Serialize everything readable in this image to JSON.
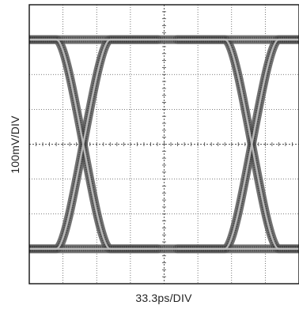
{
  "chart_data": {
    "type": "eye-diagram",
    "xlabel": "33.3ps/DIV",
    "ylabel": "100mV/DIV",
    "x_divisions": 8,
    "y_divisions": 8,
    "grid": true,
    "eye": {
      "high_level_div": 7.0,
      "low_level_div": 1.0,
      "crossing_level_div": 4.0,
      "crossings_x_div": [
        1.6,
        6.6
      ],
      "rise_time_div": 1.6,
      "unit_interval_div": 5.0
    },
    "colors": {
      "trace_fill": "#5a5a5a",
      "trace_core": "#bdbdbd",
      "grid": "#555555",
      "frame": "#111111"
    }
  }
}
